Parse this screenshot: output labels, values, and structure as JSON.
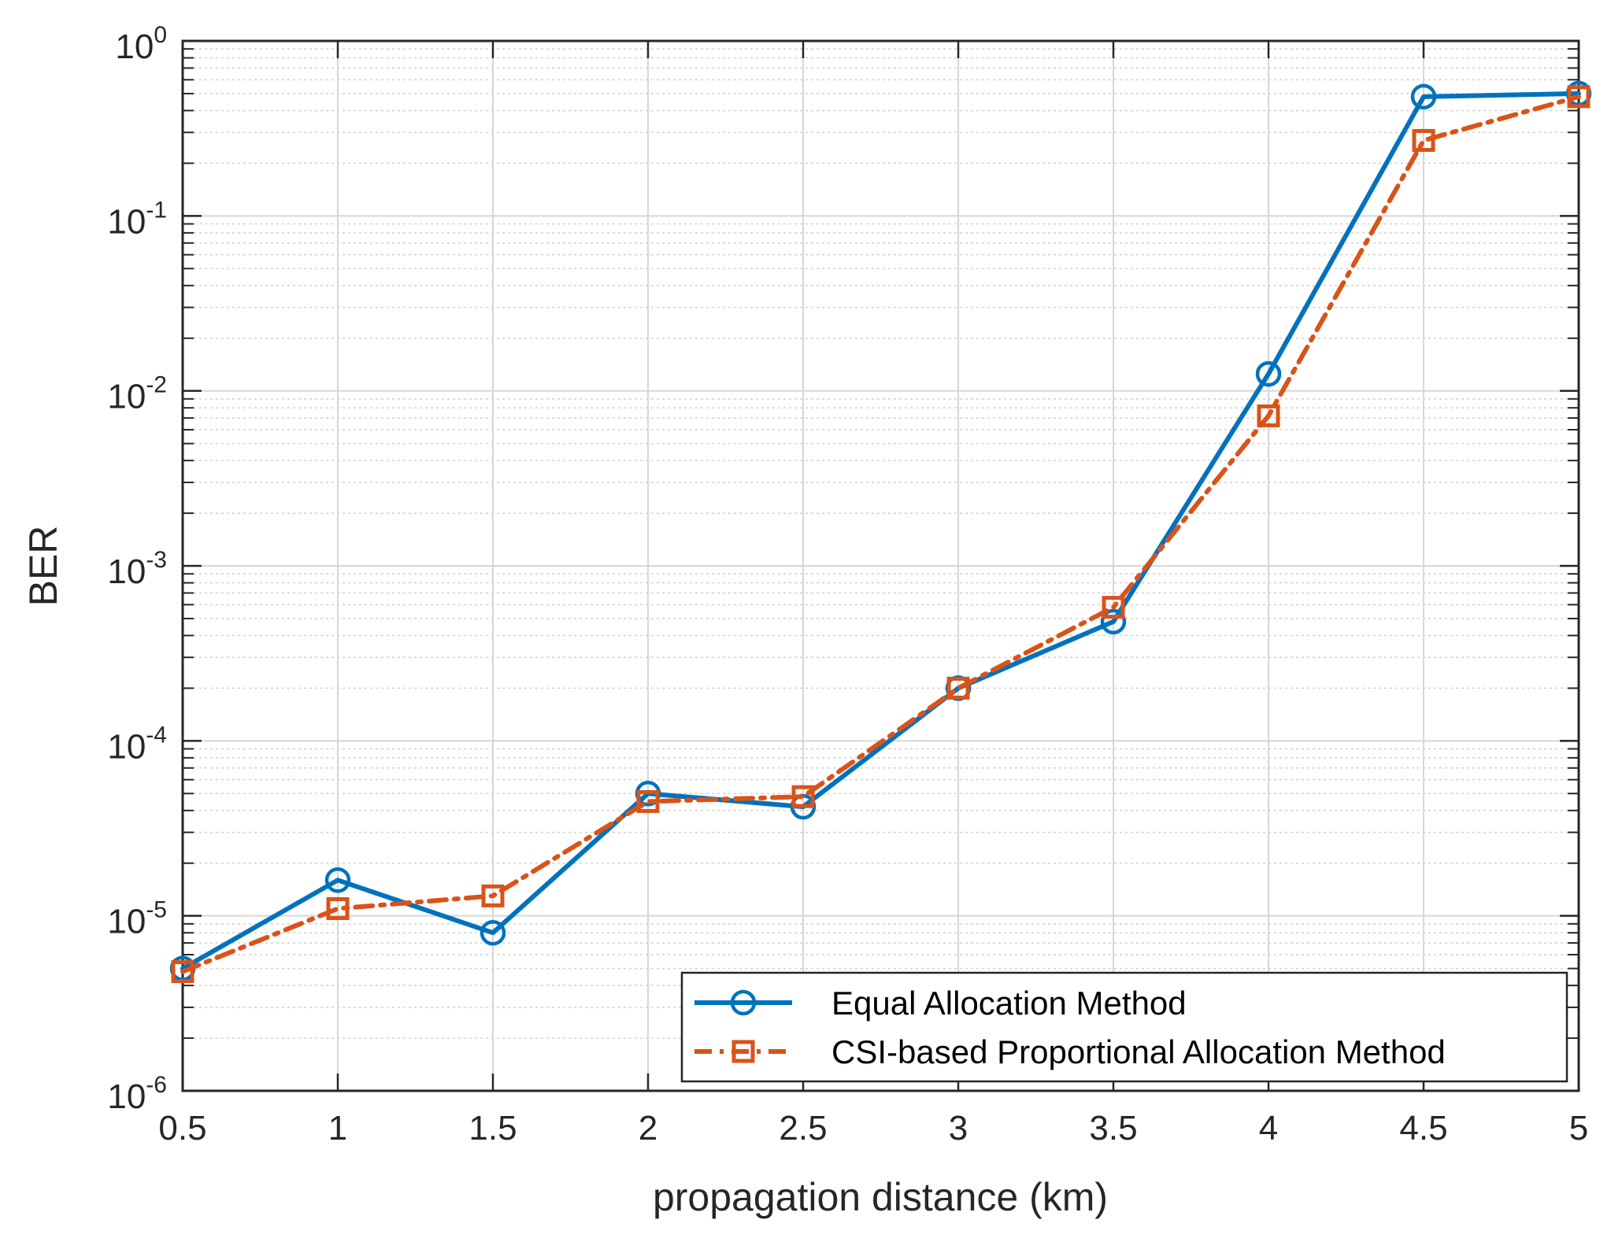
{
  "chart_data": {
    "type": "line",
    "xlabel": "propagation distance (km)",
    "ylabel": "BER",
    "xlim": [
      0.5,
      5
    ],
    "ylim": [
      1e-06,
      1
    ],
    "yscale": "log",
    "xticks": [
      {
        "value": 0.5,
        "label": "0.5"
      },
      {
        "value": 1,
        "label": "1"
      },
      {
        "value": 1.5,
        "label": "1.5"
      },
      {
        "value": 2,
        "label": "2"
      },
      {
        "value": 2.5,
        "label": "2.5"
      },
      {
        "value": 3,
        "label": "3"
      },
      {
        "value": 3.5,
        "label": "3.5"
      },
      {
        "value": 4,
        "label": "4"
      },
      {
        "value": 4.5,
        "label": "4.5"
      },
      {
        "value": 5,
        "label": "5"
      }
    ],
    "yticks": [
      {
        "value": 1,
        "base": "10",
        "exp": "0"
      },
      {
        "value": 0.1,
        "base": "10",
        "exp": "-1"
      },
      {
        "value": 0.01,
        "base": "10",
        "exp": "-2"
      },
      {
        "value": 0.001,
        "base": "10",
        "exp": "-3"
      },
      {
        "value": 0.0001,
        "base": "10",
        "exp": "-4"
      },
      {
        "value": 1e-05,
        "base": "10",
        "exp": "-5"
      },
      {
        "value": 1e-06,
        "base": "10",
        "exp": "-6"
      }
    ],
    "grid": true,
    "minor_grid": true,
    "legend_position": "bottom-right",
    "x": [
      0.5,
      1,
      1.5,
      2,
      2.5,
      3,
      3.5,
      4,
      4.5,
      5
    ],
    "series": [
      {
        "name": "Equal Allocation Method",
        "color": "#0072BD",
        "marker": "circle",
        "line_style": "solid",
        "values": [
          5e-06,
          1.6e-05,
          8e-06,
          5e-05,
          4.2e-05,
          0.0002,
          0.00048,
          0.0125,
          0.48,
          0.5
        ]
      },
      {
        "name": "CSI-based Proportional Allocation Method",
        "color": "#D95319",
        "marker": "square",
        "line_style": "dash-dot",
        "values": [
          4.8e-06,
          1.1e-05,
          1.3e-05,
          4.5e-05,
          4.8e-05,
          0.0002,
          0.00058,
          0.0072,
          0.27,
          0.48
        ]
      }
    ]
  }
}
